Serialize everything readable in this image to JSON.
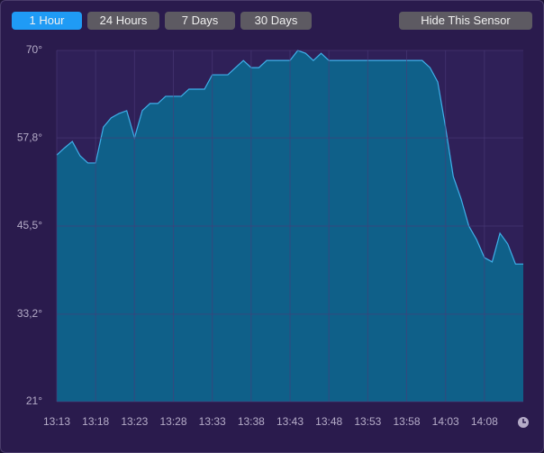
{
  "tabs": [
    {
      "label": "1 Hour",
      "selected": true
    },
    {
      "label": "24 Hours",
      "selected": false
    },
    {
      "label": "7 Days",
      "selected": false
    },
    {
      "label": "30 Days",
      "selected": false
    }
  ],
  "hide_button": "Hide This Sensor",
  "chart_data": {
    "type": "area",
    "color": "#0f6089",
    "line_color": "#3fb0ea",
    "grid": true,
    "x": [
      "13:13",
      "13:14",
      "13:15",
      "13:16",
      "13:17",
      "13:18",
      "13:19",
      "13:20",
      "13:21",
      "13:22",
      "13:23",
      "13:24",
      "13:25",
      "13:26",
      "13:27",
      "13:28",
      "13:29",
      "13:30",
      "13:31",
      "13:32",
      "13:33",
      "13:34",
      "13:35",
      "13:36",
      "13:37",
      "13:38",
      "13:39",
      "13:40",
      "13:41",
      "13:42",
      "13:43",
      "13:44",
      "13:45",
      "13:46",
      "13:47",
      "13:48",
      "13:49",
      "13:50",
      "13:51",
      "13:52",
      "13:53",
      "13:54",
      "13:55",
      "13:56",
      "13:57",
      "13:58",
      "13:59",
      "14:00",
      "14:01",
      "14:02",
      "14:03",
      "14:04",
      "14:05",
      "14:06",
      "14:07",
      "14:08",
      "14:09",
      "14:10",
      "14:11",
      "14:12",
      "14:13"
    ],
    "values": [
      55.4,
      56.4,
      57.3,
      55.3,
      54.3,
      54.3,
      59.3,
      60.6,
      61.2,
      61.6,
      57.8,
      61.6,
      62.6,
      62.6,
      63.6,
      63.6,
      63.6,
      64.6,
      64.6,
      64.6,
      66.6,
      66.6,
      66.6,
      67.6,
      68.6,
      67.6,
      67.6,
      68.6,
      68.6,
      68.6,
      68.6,
      70,
      69.6,
      68.6,
      69.6,
      68.6,
      68.6,
      68.6,
      68.6,
      68.6,
      68.6,
      68.6,
      68.6,
      68.6,
      68.6,
      68.6,
      68.6,
      68.6,
      67.6,
      65.6,
      59.3,
      52.4,
      49.3,
      45.5,
      43.6,
      41.1,
      40.5,
      44.5,
      43.0,
      40.2,
      40.2
    ],
    "xlim": [
      "13:13",
      "14:13"
    ],
    "xticks": [
      "13:13",
      "13:18",
      "13:23",
      "13:28",
      "13:33",
      "13:38",
      "13:43",
      "13:48",
      "13:53",
      "13:58",
      "14:03",
      "14:08"
    ],
    "ylim": [
      21,
      70
    ],
    "yticks": [
      {
        "value": 70,
        "label": "70°"
      },
      {
        "value": 57.8,
        "label": "57,8°"
      },
      {
        "value": 45.5,
        "label": "45,5°"
      },
      {
        "value": 33.2,
        "label": "33,2°"
      },
      {
        "value": 21,
        "label": "21°"
      }
    ]
  }
}
